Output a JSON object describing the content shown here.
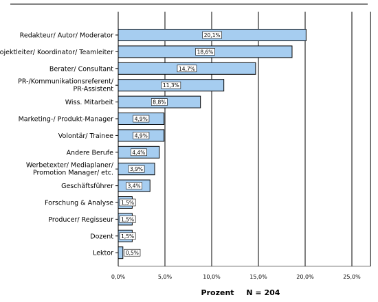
{
  "chart_data": {
    "type": "bar",
    "orientation": "horizontal",
    "categories": [
      [
        "Redakteur/ Autor/ Moderator"
      ],
      [
        "Projektleiter/ Koordinator/ Teamleiter"
      ],
      [
        "Berater/ Consultant"
      ],
      [
        "PR-/Kommunikationsreferent/",
        "PR-Assistent"
      ],
      [
        "Wiss. Mitarbeit"
      ],
      [
        "Marketing-/ Produkt-Manager"
      ],
      [
        "Volontär/ Trainee"
      ],
      [
        "Andere Berufe"
      ],
      [
        "Werbetexter/ Mediaplaner/",
        "Promotion Manager/ etc."
      ],
      [
        "Geschäftsführer"
      ],
      [
        "Forschung & Analyse"
      ],
      [
        "Producer/ Regisseur"
      ],
      [
        "Dozent"
      ],
      [
        "Lektor"
      ]
    ],
    "values": [
      20.1,
      18.6,
      14.7,
      11.3,
      8.8,
      4.9,
      4.9,
      4.4,
      3.9,
      3.4,
      1.5,
      1.5,
      1.5,
      0.5
    ],
    "data_labels": [
      "20,1%",
      "18,6%",
      "14,7%",
      "11,3%",
      "8,8%",
      "4,9%",
      "4,9%",
      "4,4%",
      "3,9%",
      "3,4%",
      "1,5%",
      "1,5%",
      "1,5%",
      "0,5%"
    ],
    "xticks": [
      "0,0%",
      "5,0%",
      "10,0%",
      "15,0%",
      "20,0%",
      "25,0%"
    ],
    "xlim": [
      0,
      27
    ],
    "xlabel": "Prozent",
    "n_label": "N = 204",
    "bar_color": "#a6cdf0",
    "grid": true
  }
}
